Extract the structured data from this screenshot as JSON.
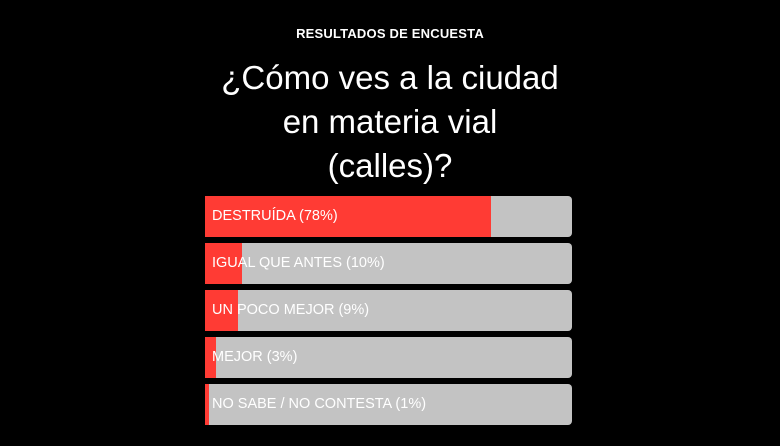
{
  "header": {
    "eyebrow": "RESULTADOS DE ENCUESTA",
    "question_lines": [
      "¿Cómo ves a la ciudad",
      "en materia vial",
      "(calles)?"
    ]
  },
  "colors": {
    "background": "#000000",
    "bar_track": "#c3c3c3",
    "bar_fill": "#ff3b34",
    "text": "#ffffff"
  },
  "chart_data": {
    "type": "bar",
    "orientation": "horizontal",
    "categories": [
      "DESTRUÍDA",
      "IGUAL QUE ANTES",
      "UN POCO MEJOR",
      "MEJOR",
      "NO SABE / NO CONTESTA"
    ],
    "values": [
      78,
      10,
      9,
      3,
      1
    ],
    "labels": [
      "DESTRUÍDA (78%)",
      "IGUAL QUE ANTES (10%)",
      "UN POCO MEJOR (9%)",
      "MEJOR (3%)",
      "NO SABE / NO CONTESTA (1%)"
    ],
    "xlim": [
      0,
      100
    ]
  }
}
